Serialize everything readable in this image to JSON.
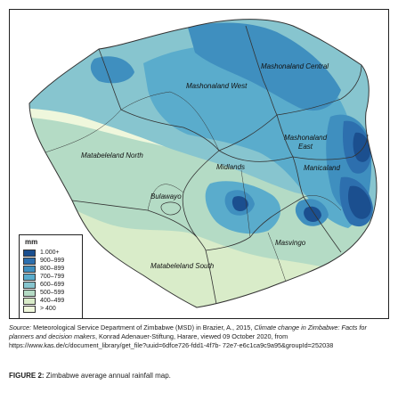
{
  "map": {
    "regions": [
      {
        "id": "mashonaland-central",
        "name": "Mashonaland Central"
      },
      {
        "id": "mashonaland-west",
        "name": "Mashonaland West"
      },
      {
        "id": "mashonaland-east",
        "name": "Mashonaland East"
      },
      {
        "id": "matabeleland-north",
        "name": "Matabeleland North"
      },
      {
        "id": "midlands",
        "name": "Midlands"
      },
      {
        "id": "manicaland",
        "name": "Manicaland"
      },
      {
        "id": "bulawayo",
        "name": "Bulawayo"
      },
      {
        "id": "masvingo",
        "name": "Masvingo"
      },
      {
        "id": "matabeleland-south",
        "name": "Matabeleland South"
      }
    ],
    "colors": {
      "c1000": "#1b4f8f",
      "c900": "#2d6fae",
      "c800": "#3f8fbf",
      "c700": "#5aaccc",
      "c600": "#87c5cf",
      "c500": "#b4dbc5",
      "c400": "#d9ecc9",
      "c0": "#eff7dc"
    }
  },
  "legend": {
    "title": "mm",
    "items": [
      {
        "label": "1.000+",
        "color": "#1b4f8f"
      },
      {
        "label": "900–999",
        "color": "#2d6fae"
      },
      {
        "label": "800–899",
        "color": "#3f8fbf"
      },
      {
        "label": "700–799",
        "color": "#5aaccc"
      },
      {
        "label": "600–699",
        "color": "#87c5cf"
      },
      {
        "label": "500–599",
        "color": "#b4dbc5"
      },
      {
        "label": "400–499",
        "color": "#d9ecc9"
      },
      {
        "label": "> 400",
        "color": "#eff7dc"
      }
    ]
  },
  "source": {
    "label": "Source:",
    "part1": " Meteorological Service Department of Zimbabwe (MSD) in Brazier, A., 2015, ",
    "title": "Climate change in Zimbabwe: Facts for planners and decision makers",
    "part2": ", Konrad Adenauer-Stiftung, Harare, viewed 09 October 2020, from https://www.kas.de/c/document_library/get_file?uuid=6dfce726-fdd1-4f7b- 72e7-e6c1ca9c9a95&groupId=252038"
  },
  "caption": {
    "label": "FIGURE 2:",
    "text": " Zimbabwe average annual rainfall map."
  }
}
